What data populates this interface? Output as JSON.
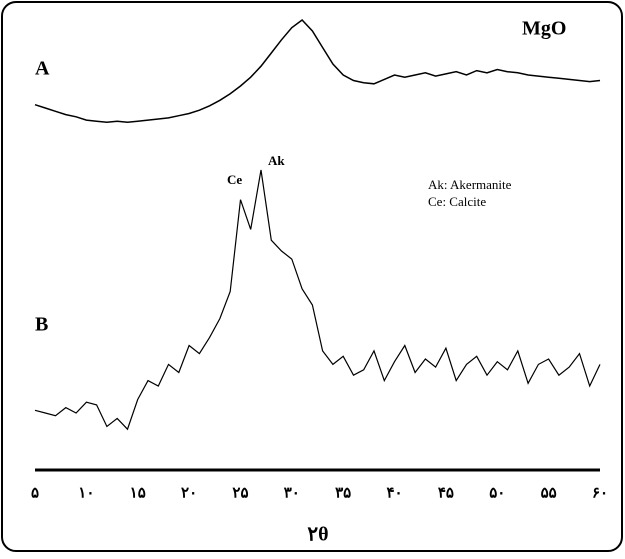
{
  "chart_data": {
    "type": "line",
    "x_label": "۲θ",
    "x": [
      5,
      6,
      7,
      8,
      9,
      10,
      11,
      12,
      13,
      14,
      15,
      16,
      17,
      18,
      19,
      20,
      21,
      22,
      23,
      24,
      25,
      26,
      27,
      28,
      29,
      30,
      31,
      32,
      33,
      34,
      35,
      36,
      37,
      38,
      39,
      40,
      41,
      42,
      43,
      44,
      45,
      46,
      47,
      48,
      49,
      50,
      51,
      52,
      53,
      54,
      55,
      56,
      57,
      58,
      59,
      60
    ],
    "xlim": [
      5,
      60
    ],
    "xticks": [
      {
        "value": 5,
        "label": "۵"
      },
      {
        "value": 10,
        "label": "۱۰"
      },
      {
        "value": 15,
        "label": "۱۵"
      },
      {
        "value": 20,
        "label": "۲۰"
      },
      {
        "value": 25,
        "label": "۲۵"
      },
      {
        "value": 30,
        "label": "۳۰"
      },
      {
        "value": 35,
        "label": "۳۵"
      },
      {
        "value": 40,
        "label": "۴۰"
      },
      {
        "value": 45,
        "label": "۴۵"
      },
      {
        "value": 50,
        "label": "۵۰"
      },
      {
        "value": 55,
        "label": "۵۵"
      },
      {
        "value": 60,
        "label": "۶۰"
      }
    ],
    "series": [
      {
        "name": "A",
        "color": "#000000",
        "values": [
          23,
          20,
          17,
          14,
          12,
          9,
          8,
          7,
          8,
          7,
          8,
          9,
          10,
          11,
          13,
          15,
          18,
          22,
          27,
          33,
          40,
          48,
          58,
          70,
          82,
          93,
          100,
          90,
          75,
          60,
          50,
          45,
          43,
          42,
          46,
          50,
          48,
          50,
          52,
          49,
          51,
          53,
          50,
          54,
          52,
          55,
          53,
          52,
          50,
          49,
          48,
          47,
          46,
          45,
          44,
          45
        ]
      },
      {
        "name": "B",
        "color": "#000000",
        "values": [
          11,
          10,
          9,
          12,
          10,
          14,
          13,
          5,
          8,
          4,
          15,
          22,
          20,
          28,
          25,
          35,
          32,
          38,
          45,
          55,
          89,
          78,
          100,
          74,
          70,
          67,
          56,
          50,
          33,
          28,
          31,
          24,
          26,
          33,
          22,
          29,
          35,
          25,
          30,
          27,
          34,
          22,
          28,
          31,
          24,
          29,
          26,
          33,
          21,
          28,
          30,
          24,
          27,
          32,
          20,
          28
        ]
      }
    ],
    "annotations": [
      "MgO",
      "Ak",
      "Ce",
      "Ak: Akermanite",
      "Ce: Calcite"
    ]
  }
}
